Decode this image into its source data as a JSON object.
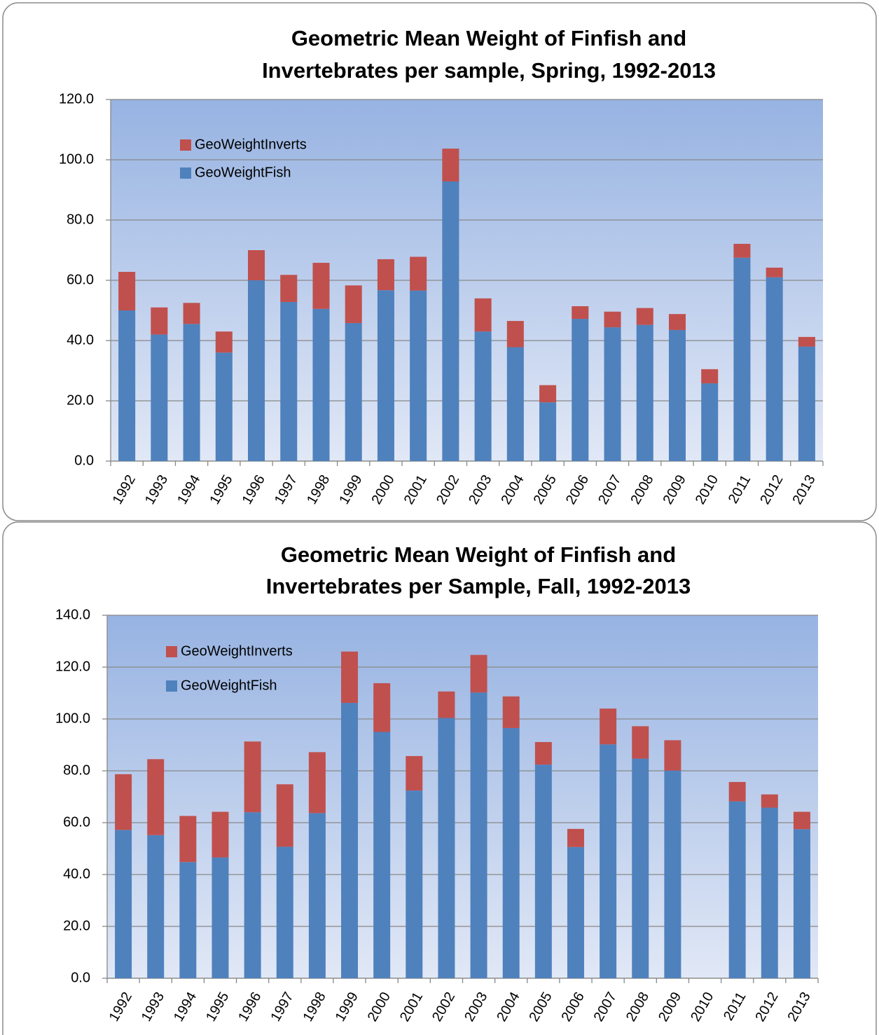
{
  "chart_data": [
    {
      "type": "stacked_bar",
      "title": [
        "Geometric Mean Weight of Finfish and",
        "Invertebrates per sample, Spring, 1992-2013"
      ],
      "categories": [
        "1992",
        "1993",
        "1994",
        "1995",
        "1996",
        "1997",
        "1998",
        "1999",
        "2000",
        "2001",
        "2002",
        "2003",
        "2004",
        "2005",
        "2006",
        "2007",
        "2008",
        "2009",
        "2010",
        "2011",
        "2012",
        "2013"
      ],
      "series": [
        {
          "name": "GeoWeightFish",
          "color": "#4f81bd",
          "values": [
            50,
            42,
            45.5,
            36,
            60,
            52.8,
            50.5,
            45.8,
            56.7,
            56.6,
            92.8,
            43,
            37.8,
            19.5,
            47.2,
            44.4,
            45.2,
            43.5,
            25.8,
            67.5,
            61,
            38
          ]
        },
        {
          "name": "GeoWeightInverts",
          "color": "#c0504d",
          "values": [
            12.8,
            9,
            7,
            7,
            10,
            9,
            15.3,
            12.5,
            10.3,
            11.2,
            10.9,
            11,
            8.7,
            5.7,
            4.2,
            5.2,
            5.6,
            5.3,
            4.7,
            4.6,
            3.2,
            3.2
          ]
        }
      ],
      "ylim": [
        0,
        120
      ],
      "yticks": [
        {
          "value": 0,
          "label": "0.0"
        },
        {
          "value": 20,
          "label": "20.0"
        },
        {
          "value": 40,
          "label": "40.0"
        },
        {
          "value": 60,
          "label": "60.0"
        },
        {
          "value": 80,
          "label": "80.0"
        },
        {
          "value": 100,
          "label": "100.0"
        },
        {
          "value": 120,
          "label": "120.0"
        }
      ],
      "grid": true,
      "legend": "upper left"
    },
    {
      "type": "stacked_bar",
      "title": [
        "Geometric Mean Weight of Finfish and",
        "Invertebrates per Sample, Fall, 1992-2013"
      ],
      "categories": [
        "1992",
        "1993",
        "1994",
        "1995",
        "1996",
        "1997",
        "1998",
        "1999",
        "2000",
        "2001",
        "2002",
        "2003",
        "2004",
        "2005",
        "2006",
        "2007",
        "2008",
        "2009",
        "2010",
        "2011",
        "2012",
        "2013"
      ],
      "series": [
        {
          "name": "GeoWeightFish",
          "color": "#4f81bd",
          "values": [
            57.2,
            55.2,
            44.8,
            46.6,
            64,
            50.7,
            63.7,
            106.2,
            95,
            72.4,
            100.4,
            110.2,
            96.5,
            82.4,
            50.6,
            90.2,
            84.7,
            80.1,
            null,
            68.2,
            65.8,
            57.5
          ]
        },
        {
          "name": "GeoWeightInverts",
          "color": "#c0504d",
          "values": [
            21.5,
            29.3,
            17.8,
            17.6,
            27.3,
            24.1,
            23.5,
            19.8,
            18.8,
            13.3,
            10.2,
            14.5,
            12.2,
            8.7,
            7,
            13.8,
            12.5,
            11.7,
            null,
            7.5,
            5.1,
            6.7
          ]
        }
      ],
      "ylim": [
        0,
        140
      ],
      "yticks": [
        {
          "value": 0,
          "label": "0.0"
        },
        {
          "value": 20,
          "label": "20.0"
        },
        {
          "value": 40,
          "label": "40.0"
        },
        {
          "value": 60,
          "label": "60.0"
        },
        {
          "value": 80,
          "label": "80.0"
        },
        {
          "value": 100,
          "label": "100.0"
        },
        {
          "value": 120,
          "label": "120.0"
        },
        {
          "value": 140,
          "label": "140.0"
        }
      ],
      "grid": true,
      "legend": "upper left"
    }
  ]
}
